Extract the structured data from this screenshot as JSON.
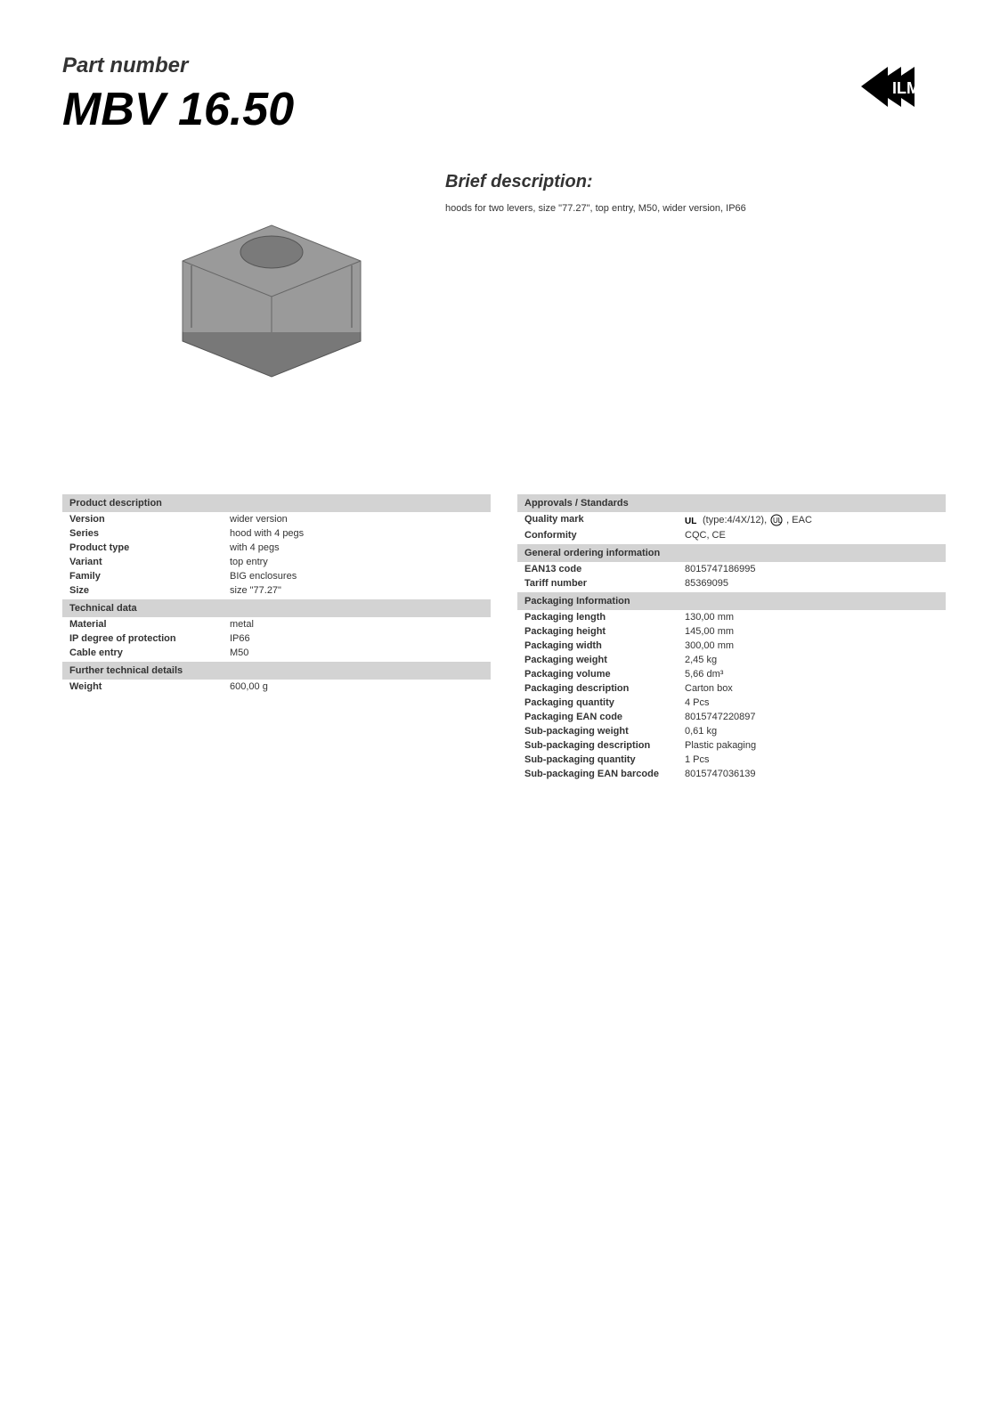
{
  "header": {
    "part_label": "Part number",
    "part_number": "MBV 16.50"
  },
  "brief": {
    "title": "Brief description:",
    "description": "hoods for two levers, size \"77.27\", top entry, M50, wider version, IP66"
  },
  "left_table": {
    "sections": [
      {
        "title": "Product description",
        "rows": [
          {
            "label": "Version",
            "value": "wider version"
          },
          {
            "label": "Series",
            "value": "hood with 4 pegs"
          },
          {
            "label": "Product type",
            "value": "with 4 pegs"
          },
          {
            "label": "Variant",
            "value": "top entry"
          },
          {
            "label": "Family",
            "value": "BIG enclosures"
          },
          {
            "label": "Size",
            "value": "size \"77.27\""
          }
        ]
      },
      {
        "title": "Technical data",
        "rows": [
          {
            "label": "Material",
            "value": "metal"
          },
          {
            "label": "IP degree of protection",
            "value": "IP66"
          },
          {
            "label": "Cable entry",
            "value": "M50"
          }
        ]
      },
      {
        "title": "Further technical details",
        "rows": [
          {
            "label": "Weight",
            "value": "600,00 g"
          }
        ]
      }
    ]
  },
  "right_table": {
    "sections": [
      {
        "title": "Approvals / Standards",
        "rows": [
          {
            "label": "Quality mark",
            "value": " (type:4/4X/12), ",
            "value_suffix": " , EAC",
            "has_icons": true
          },
          {
            "label": "Conformity",
            "value": "CQC, CE"
          }
        ]
      },
      {
        "title": "General ordering information",
        "rows": [
          {
            "label": "EAN13 code",
            "value": "8015747186995"
          },
          {
            "label": "Tariff number",
            "value": "85369095"
          }
        ]
      },
      {
        "title": "Packaging Information",
        "rows": [
          {
            "label": "Packaging length",
            "value": "130,00 mm"
          },
          {
            "label": "Packaging height",
            "value": "145,00 mm"
          },
          {
            "label": "Packaging width",
            "value": "300,00 mm"
          },
          {
            "label": "Packaging weight",
            "value": "2,45 kg"
          },
          {
            "label": "Packaging volume",
            "value": "5,66 dm³"
          },
          {
            "label": "Packaging description",
            "value": "Carton box"
          },
          {
            "label": "Packaging quantity",
            "value": "4 Pcs"
          },
          {
            "label": "Packaging EAN code",
            "value": "8015747220897"
          },
          {
            "label": "Sub-packaging weight",
            "value": "0,61 kg"
          },
          {
            "label": "Sub-packaging description",
            "value": "Plastic pakaging"
          },
          {
            "label": "Sub-packaging quantity",
            "value": "1 Pcs"
          },
          {
            "label": "Sub-packaging EAN barcode",
            "value": "8015747036139"
          }
        ]
      }
    ]
  },
  "colors": {
    "section_bg": "#d3d3d3",
    "text": "#333333",
    "body_bg": "#ffffff"
  }
}
